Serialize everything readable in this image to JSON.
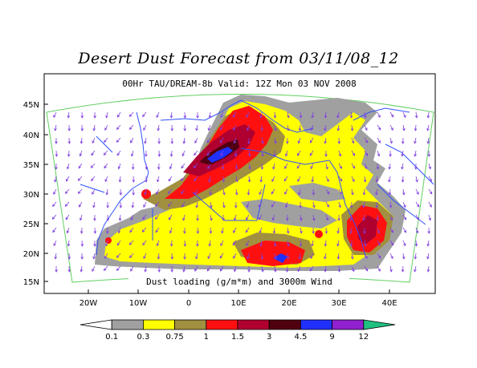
{
  "title": "Desert Dust Forecast from 03/11/08_12",
  "subtitle": "00Hr TAU/DREAM-8b Valid: 12Z Mon 03 NOV 2008",
  "caption": "Dust loading (g/m*m) and 3000m Wind",
  "lat_labels": [
    "45N",
    "40N",
    "35N",
    "30N",
    "25N",
    "20N",
    "15N"
  ],
  "lon_labels": [
    "20W",
    "10W",
    "0",
    "10E",
    "20E",
    "30E",
    "40E"
  ],
  "colorbar": {
    "labels": [
      "0.1",
      "0.3",
      "0.75",
      "1",
      "1.5",
      "3",
      "4.5",
      "9",
      "12"
    ],
    "colors": [
      "#ffffff",
      "#a0a0a0",
      "#ffff00",
      "#a09040",
      "#ff1010",
      "#b00030",
      "#500010",
      "#2030ff",
      "#9020d0",
      "#20c080"
    ]
  },
  "colors": {
    "coast": "#3050ff",
    "domain": "#60d060",
    "wind": "#8040e0"
  }
}
